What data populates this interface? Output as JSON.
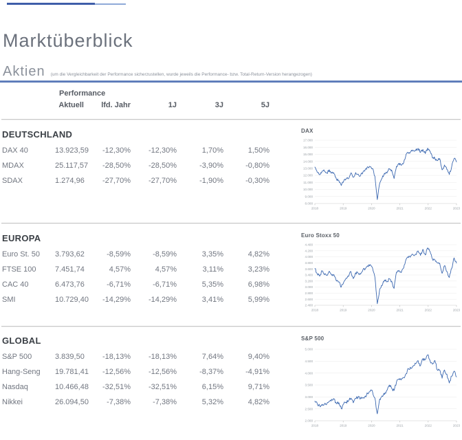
{
  "page": {
    "title": "Marktüberblick",
    "section_title": "Aktien",
    "section_note": "(um die Vergleichbarkeit der Performance sicherzustellen, wurde jeweils die Performance- bzw. Total-Return-Version herangezogen)"
  },
  "colors": {
    "accent_blue": "#3f5ea9",
    "accent_blue_light": "#8ea9d8",
    "rule_blue": "#4266ae",
    "chart_line_blue": "#3a67b0",
    "divider_gray": "#c9c9c9",
    "title_gray": "#6b717c",
    "row_text_gray": "#717680"
  },
  "table": {
    "group_header": "Performance",
    "columns": [
      "Aktuell",
      "lfd. Jahr",
      "1J",
      "3J",
      "5J"
    ],
    "sections": [
      {
        "title": "DEUTSCHLAND",
        "rows": [
          {
            "name": "DAX 40",
            "values": [
              "13.923,59",
              "-12,30%",
              "-12,30%",
              "1,70%",
              "1,50%"
            ]
          },
          {
            "name": "MDAX",
            "values": [
              "25.117,57",
              "-28,50%",
              "-28,50%",
              "-3,90%",
              "-0,80%"
            ]
          },
          {
            "name": "SDAX",
            "values": [
              "1.274,96",
              "-27,70%",
              "-27,70%",
              "-1,90%",
              "-0,30%"
            ]
          }
        ]
      },
      {
        "title": "EUROPA",
        "rows": [
          {
            "name": "Euro St. 50",
            "values": [
              "3.793,62",
              "-8,59%",
              "-8,59%",
              "3,35%",
              "4,82%"
            ]
          },
          {
            "name": "FTSE 100",
            "values": [
              "7.451,74",
              "4,57%",
              "4,57%",
              "3,11%",
              "3,23%"
            ]
          },
          {
            "name": "CAC 40",
            "values": [
              "6.473,76",
              "-6,71%",
              "-6,71%",
              "5,35%",
              "6,98%"
            ]
          },
          {
            "name": "SMI",
            "values": [
              "10.729,40",
              "-14,29%",
              "-14,29%",
              "3,41%",
              "5,99%"
            ]
          }
        ]
      },
      {
        "title": "GLOBAL",
        "rows": [
          {
            "name": "S&P 500",
            "values": [
              "3.839,50",
              "-18,13%",
              "-18,13%",
              "7,64%",
              "9,40%"
            ]
          },
          {
            "name": "Hang-Seng",
            "values": [
              "19.781,41",
              "-12,56%",
              "-12,56%",
              "-8,37%",
              "-4,91%"
            ]
          },
          {
            "name": "Nasdaq",
            "values": [
              "10.466,48",
              "-32,51%",
              "-32,51%",
              "6,15%",
              "9,71%"
            ]
          },
          {
            "name": "Nikkei",
            "values": [
              "26.094,50",
              "-7,38%",
              "-7,38%",
              "5,32%",
              "4,82%"
            ]
          }
        ]
      }
    ]
  },
  "chart_data": [
    {
      "type": "line",
      "title": "DAX",
      "x_labels": [
        "2018",
        "2019",
        "2020",
        "2021",
        "2022",
        "2023"
      ],
      "ylim": [
        8000,
        17000
      ],
      "y_step": 1000,
      "y_tick_labels": [
        "17.000",
        "16.000",
        "15.000",
        "14.000",
        "13.000",
        "12.000",
        "11.000",
        "10.000",
        "9.000",
        "8.000"
      ],
      "grid": true,
      "legend": "none",
      "x_note": "monthly values Jan 2018 - Dec 2022",
      "values": [
        13190,
        12440,
        12100,
        12610,
        12600,
        12310,
        12805,
        12360,
        12245,
        11450,
        11260,
        10560,
        11175,
        11515,
        11525,
        12345,
        11725,
        12400,
        12190,
        11940,
        12430,
        12865,
        13235,
        13250,
        12980,
        11890,
        8560,
        10860,
        11590,
        12310,
        12310,
        12945,
        12760,
        11555,
        13290,
        13720,
        13430,
        13790,
        15010,
        15135,
        15420,
        15530,
        15545,
        15835,
        15260,
        15690,
        15100,
        15885,
        15470,
        14460,
        14415,
        14100,
        14390,
        12785,
        13480,
        12835,
        12115,
        13255,
        14400,
        13925
      ],
      "line_color": "#3a67b0"
    },
    {
      "type": "line",
      "title": "Euro Stoxx 50",
      "x_labels": [
        "2018",
        "2019",
        "2020",
        "2021",
        "2022",
        "2023"
      ],
      "ylim": [
        2400,
        4400
      ],
      "y_step": 200,
      "y_tick_labels": [
        "4.400",
        "4.200",
        "4.000",
        "3.800",
        "3.600",
        "3.400",
        "3.200",
        "3.000",
        "2.800",
        "2.600",
        "2.400"
      ],
      "grid": true,
      "legend": "none",
      "x_note": "monthly values Jan 2018 - Dec 2022",
      "values": [
        3609,
        3439,
        3362,
        3537,
        3407,
        3396,
        3525,
        3393,
        3399,
        3198,
        3173,
        3001,
        3159,
        3298,
        3352,
        3515,
        3280,
        3474,
        3467,
        3427,
        3569,
        3604,
        3704,
        3745,
        3641,
        3329,
        2450,
        2928,
        3050,
        3234,
        3174,
        3273,
        3194,
        2958,
        3493,
        3553,
        3481,
        3636,
        3919,
        3974,
        4039,
        4064,
        4089,
        4196,
        4048,
        4251,
        4063,
        4298,
        4175,
        3924,
        3903,
        3803,
        3789,
        3455,
        3708,
        3517,
        3318,
        3618,
        3965,
        3794
      ],
      "line_color": "#3a67b0"
    },
    {
      "type": "line",
      "title": "S&P 500",
      "x_labels": [
        "2018",
        "2019",
        "2020",
        "2021",
        "2022",
        "2023"
      ],
      "ylim": [
        2000,
        5000
      ],
      "y_step": 500,
      "y_tick_labels": [
        "5.000",
        "4.500",
        "4.000",
        "3.500",
        "3.000",
        "2.500",
        "2.000"
      ],
      "grid": true,
      "legend": "none",
      "x_note": "monthly values Jan 2018 - Dec 2022",
      "values": [
        2824,
        2714,
        2641,
        2648,
        2705,
        2718,
        2816,
        2902,
        2914,
        2712,
        2760,
        2507,
        2704,
        2784,
        2834,
        2946,
        2752,
        2942,
        2980,
        2926,
        2977,
        3038,
        3141,
        3231,
        3226,
        2954,
        2290,
        2912,
        3044,
        3100,
        3271,
        3500,
        3363,
        3270,
        3622,
        3756,
        3714,
        3811,
        3973,
        4181,
        4204,
        4298,
        4395,
        4523,
        4308,
        4605,
        4567,
        4766,
        4516,
        4374,
        4530,
        4132,
        4132,
        3785,
        4130,
        3955,
        3586,
        3872,
        4080,
        3840
      ],
      "line_color": "#3a67b0"
    }
  ]
}
